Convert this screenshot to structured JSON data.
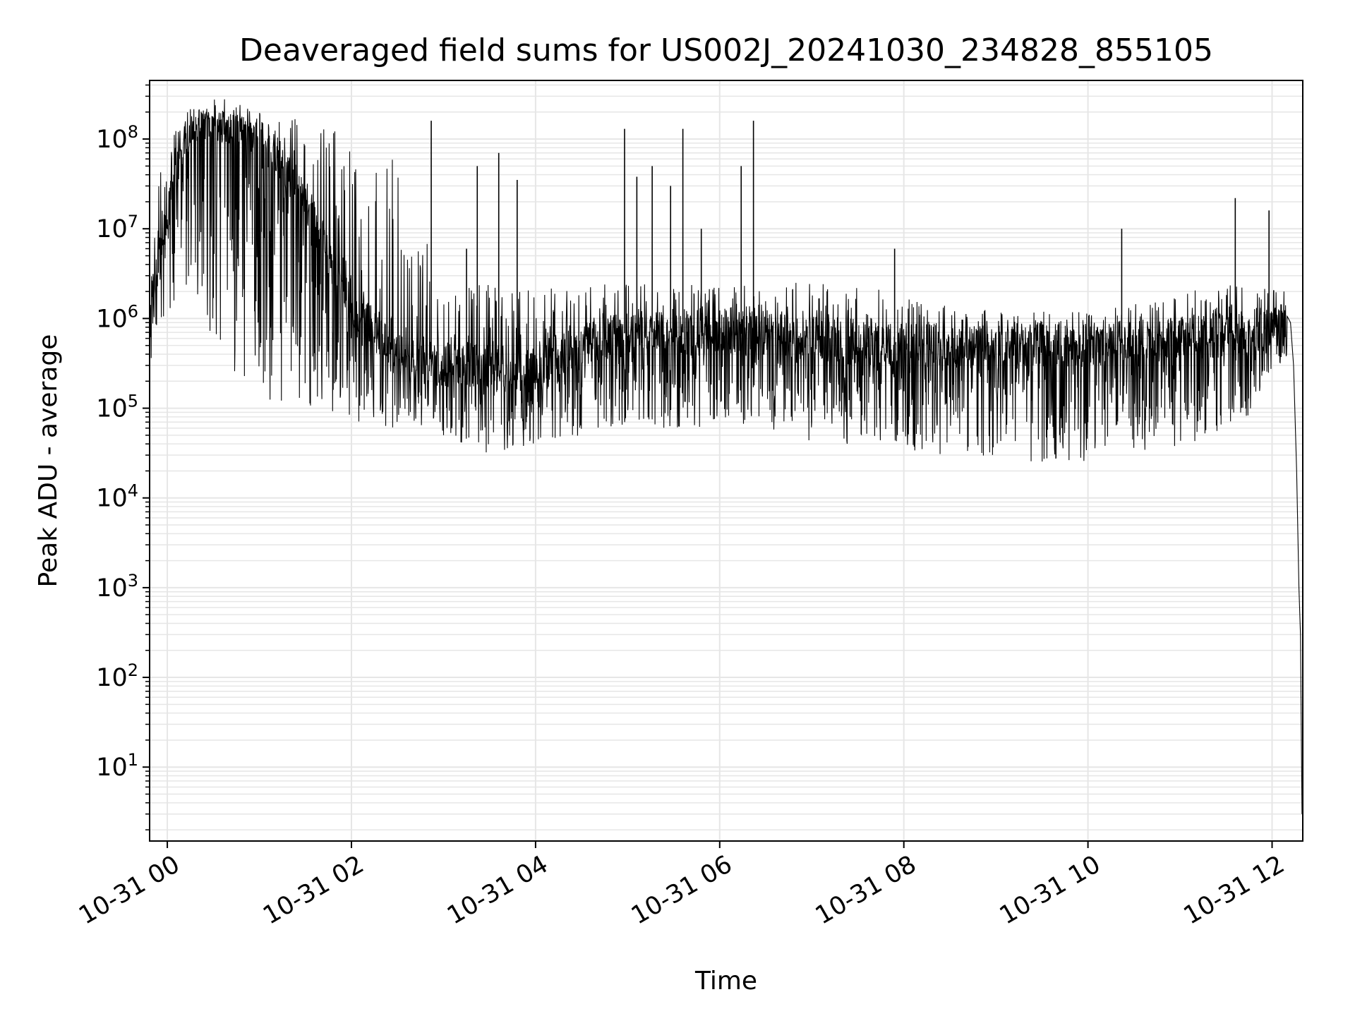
{
  "chart_data": {
    "type": "line",
    "title": "Deaveraged field sums for US002J_20241030_234828_855105",
    "xlabel": "Time",
    "ylabel": "Peak ADU - average",
    "yscale": "log",
    "grid": true,
    "line_color": "#000000",
    "grid_color": "#e6e6e6",
    "xlim": [
      "2024-10-30T23:48:28",
      "2024-10-31T12:20:00"
    ],
    "ylim": [
      1.5,
      450000000
    ],
    "x_ticks": [
      {
        "value": "2024-10-31T00:00",
        "label": "10-31 00"
      },
      {
        "value": "2024-10-31T02:00",
        "label": "10-31 02"
      },
      {
        "value": "2024-10-31T04:00",
        "label": "10-31 04"
      },
      {
        "value": "2024-10-31T06:00",
        "label": "10-31 06"
      },
      {
        "value": "2024-10-31T08:00",
        "label": "10-31 08"
      },
      {
        "value": "2024-10-31T10:00",
        "label": "10-31 10"
      },
      {
        "value": "2024-10-31T12:00",
        "label": "10-31 12"
      }
    ],
    "y_ticks": [
      {
        "value": 10,
        "base": "10",
        "exp": "1"
      },
      {
        "value": 100,
        "base": "10",
        "exp": "2"
      },
      {
        "value": 1000,
        "base": "10",
        "exp": "3"
      },
      {
        "value": 10000,
        "base": "10",
        "exp": "4"
      },
      {
        "value": 100000,
        "base": "10",
        "exp": "5"
      },
      {
        "value": 1000000,
        "base": "10",
        "exp": "6"
      },
      {
        "value": 10000000,
        "base": "10",
        "exp": "7"
      },
      {
        "value": 100000000,
        "base": "10",
        "exp": "8"
      }
    ],
    "envelope": [
      {
        "t": "2024-10-30T23:48:28",
        "median": 1500000,
        "low": 250000,
        "high": 2500000
      },
      {
        "t": "2024-10-30T23:55:00",
        "median": 5000000,
        "low": 900000,
        "high": 40000000
      },
      {
        "t": "2024-10-31T00:05:00",
        "median": 40000000,
        "low": 1200000,
        "high": 120000000
      },
      {
        "t": "2024-10-31T00:15:00",
        "median": 150000000,
        "low": 3000000,
        "high": 180000000
      },
      {
        "t": "2024-10-31T00:30:00",
        "median": 170000000,
        "low": 500000,
        "high": 185000000
      },
      {
        "t": "2024-10-31T01:00:00",
        "median": 120000000,
        "low": 120000,
        "high": 185000000
      },
      {
        "t": "2024-10-31T01:30:00",
        "median": 20000000,
        "low": 100000,
        "high": 180000000
      },
      {
        "t": "2024-10-31T02:00:00",
        "median": 1500000,
        "low": 70000,
        "high": 160000000
      },
      {
        "t": "2024-10-31T02:30:00",
        "median": 400000,
        "low": 60000,
        "high": 70000000
      },
      {
        "t": "2024-10-31T03:00:00",
        "median": 300000,
        "low": 50000,
        "high": 2000000
      },
      {
        "t": "2024-10-31T03:30:00",
        "median": 300000,
        "low": 30000,
        "high": 2500000
      },
      {
        "t": "2024-10-31T04:00:00",
        "median": 300000,
        "low": 40000,
        "high": 2000000
      },
      {
        "t": "2024-10-31T04:30:00",
        "median": 500000,
        "low": 50000,
        "high": 2500000
      },
      {
        "t": "2024-10-31T05:00:00",
        "median": 700000,
        "low": 60000,
        "high": 2500000
      },
      {
        "t": "2024-10-31T06:00:00",
        "median": 700000,
        "low": 60000,
        "high": 2500000
      },
      {
        "t": "2024-10-31T07:00:00",
        "median": 600000,
        "low": 40000,
        "high": 2500000
      },
      {
        "t": "2024-10-31T08:00:00",
        "median": 500000,
        "low": 35000,
        "high": 2000000
      },
      {
        "t": "2024-10-31T09:00:00",
        "median": 500000,
        "low": 25000,
        "high": 1200000
      },
      {
        "t": "2024-10-31T10:00:00",
        "median": 500000,
        "low": 25000,
        "high": 1200000
      },
      {
        "t": "2024-10-31T11:00:00",
        "median": 600000,
        "low": 35000,
        "high": 2000000
      },
      {
        "t": "2024-10-31T11:45:00",
        "median": 700000,
        "low": 80000,
        "high": 2500000
      },
      {
        "t": "2024-10-31T12:10:00",
        "median": 900000,
        "low": 400000,
        "high": 2000000
      }
    ],
    "spikes": [
      {
        "t": "2024-10-31T02:52:00",
        "value": 160000000
      },
      {
        "t": "2024-10-31T03:15:00",
        "value": 6000000
      },
      {
        "t": "2024-10-31T03:22:00",
        "value": 50000000
      },
      {
        "t": "2024-10-31T03:36:00",
        "value": 70000000
      },
      {
        "t": "2024-10-31T03:48:00",
        "value": 35000000
      },
      {
        "t": "2024-10-31T04:58:00",
        "value": 130000000
      },
      {
        "t": "2024-10-31T05:06:00",
        "value": 38000000
      },
      {
        "t": "2024-10-31T05:16:00",
        "value": 50000000
      },
      {
        "t": "2024-10-31T05:28:00",
        "value": 30000000
      },
      {
        "t": "2024-10-31T05:36:00",
        "value": 130000000
      },
      {
        "t": "2024-10-31T05:48:00",
        "value": 10000000
      },
      {
        "t": "2024-10-31T06:14:00",
        "value": 50000000
      },
      {
        "t": "2024-10-31T06:22:00",
        "value": 160000000
      },
      {
        "t": "2024-10-31T07:54:00",
        "value": 6000000
      },
      {
        "t": "2024-10-31T10:22:00",
        "value": 10000000
      },
      {
        "t": "2024-10-31T11:36:00",
        "value": 22000000
      },
      {
        "t": "2024-10-31T11:58:00",
        "value": 16000000
      }
    ],
    "tail": [
      {
        "t": "2024-10-31T12:12:00",
        "value": 900000
      },
      {
        "t": "2024-10-31T12:14:00",
        "value": 300000
      },
      {
        "t": "2024-10-31T12:16:00",
        "value": 20000
      },
      {
        "t": "2024-10-31T12:17:30",
        "value": 1000
      },
      {
        "t": "2024-10-31T12:18:30",
        "value": 300
      },
      {
        "t": "2024-10-31T12:19:30",
        "value": 3
      }
    ]
  }
}
